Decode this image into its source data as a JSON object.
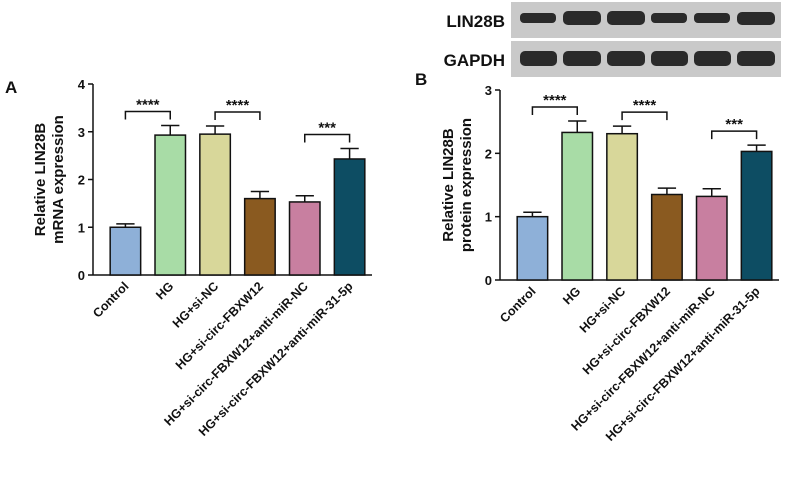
{
  "chart_data": [
    {
      "type": "bar",
      "panel": "A",
      "ylabel": [
        "Relative LIN28B",
        "mRNA expression"
      ],
      "categories": [
        "Control",
        "HG",
        "HG+si-NC",
        "HG+si-circ-FBXW12",
        "HG+si-circ-FBXW12+anti-miR-NC",
        "HG+si-circ-FBXW12+anti-miR-31-5p"
      ],
      "values": [
        1.0,
        2.93,
        2.95,
        1.6,
        1.53,
        2.43
      ],
      "errors": [
        0.07,
        0.2,
        0.17,
        0.15,
        0.13,
        0.22
      ],
      "colors": [
        "#8eb0d8",
        "#a8dca6",
        "#d8d79a",
        "#8a5a20",
        "#c87fa0",
        "#0d4d63"
      ],
      "ylim": [
        0,
        4
      ],
      "yticks": [
        0,
        1,
        2,
        3,
        4
      ],
      "significance": [
        {
          "pair": [
            0,
            1
          ],
          "label": "****"
        },
        {
          "pair": [
            2,
            3
          ],
          "label": "****"
        },
        {
          "pair": [
            4,
            5
          ],
          "label": "***"
        }
      ]
    },
    {
      "type": "bar",
      "panel": "B",
      "ylabel": [
        "Relative LIN28B",
        "protein expression"
      ],
      "categories": [
        "Control",
        "HG",
        "HG+si-NC",
        "HG+si-circ-FBXW12",
        "HG+si-circ-FBXW12+anti-miR-NC",
        "HG+si-circ-FBXW12+anti-miR-31-5p"
      ],
      "values": [
        1.0,
        2.33,
        2.31,
        1.35,
        1.32,
        2.03
      ],
      "errors": [
        0.07,
        0.18,
        0.12,
        0.1,
        0.12,
        0.1
      ],
      "colors": [
        "#8eb0d8",
        "#a8dca6",
        "#d8d79a",
        "#8a5a20",
        "#c87fa0",
        "#0d4d63"
      ],
      "ylim": [
        0,
        3
      ],
      "yticks": [
        0,
        1,
        2,
        3
      ],
      "significance": [
        {
          "pair": [
            0,
            1
          ],
          "label": "****"
        },
        {
          "pair": [
            2,
            3
          ],
          "label": "****"
        },
        {
          "pair": [
            4,
            5
          ],
          "label": "***"
        }
      ]
    }
  ],
  "blot": {
    "rows": [
      "LIN28B",
      "GAPDH"
    ]
  }
}
